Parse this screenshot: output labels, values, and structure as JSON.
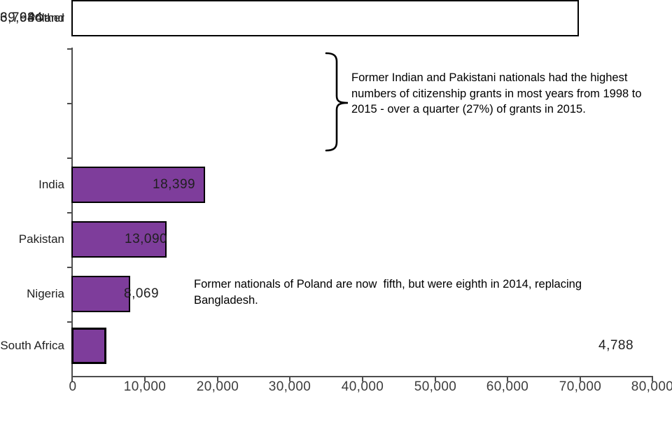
{
  "chart_data": {
    "type": "bar",
    "orientation": "horizontal",
    "title": "",
    "categories": [
      "India",
      "Pakistan",
      "Nigeria",
      "South Africa",
      "Poland",
      "Other"
    ],
    "values": [
      18399,
      13090,
      8069,
      4788,
      3763,
      69944
    ],
    "value_labels": [
      "18,399",
      "13,090",
      "8,069",
      "4,788",
      "3,763",
      "69,944"
    ],
    "xlim": [
      0,
      80000
    ],
    "x_ticks": [
      "0",
      "10,000",
      "20,000",
      "30,000",
      "40,000",
      "50,000",
      "60,000",
      "70,000",
      "80,000"
    ],
    "grid": false,
    "legend": "none",
    "bar_color": "#7E3D9B",
    "other_bar_fill": "#FFFFFF",
    "bar_border_color": "#000000",
    "axis_color": "#4d4d4d"
  },
  "annotations": {
    "top_lines": [
      "Former Indian and Pakistani nationals had the highest",
      "numbers of citizenship grants in most years from 1998 to",
      "2015 - over a quarter (27%) of grants in 2015."
    ],
    "poland_lines": [
      "Former nationals of Poland are now  fifth, but were eighth in 2014, replacing",
      "Bangladesh."
    ]
  }
}
